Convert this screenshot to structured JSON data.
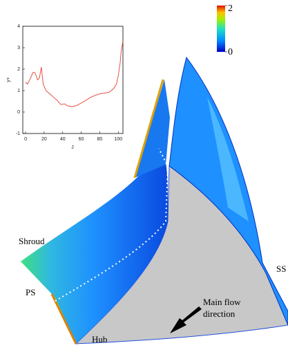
{
  "chart_data": {
    "type": "line",
    "x_label": "J",
    "y_label": "y+",
    "x": [
      0,
      2,
      5,
      8,
      10,
      13,
      15,
      17,
      19,
      22,
      26,
      30,
      34,
      38,
      42,
      45,
      50,
      55,
      60,
      65,
      70,
      75,
      80,
      85,
      90,
      95,
      98,
      100,
      102,
      103,
      105
    ],
    "series": [
      {
        "color": "#e04030",
        "values": [
          1.4,
          1.3,
          1.55,
          1.85,
          1.85,
          1.5,
          1.6,
          2.1,
          1.3,
          1.0,
          0.85,
          0.7,
          0.55,
          0.35,
          0.38,
          0.3,
          0.25,
          0.3,
          0.42,
          0.55,
          0.68,
          0.78,
          0.85,
          0.88,
          0.92,
          1.1,
          1.3,
          1.7,
          2.3,
          2.8,
          3.3
        ]
      }
    ],
    "xlim": [
      -3,
      105
    ],
    "ylim": [
      -1,
      4
    ],
    "xticks": [
      0,
      20,
      40,
      60,
      80,
      100
    ],
    "yticks": [
      -1,
      0,
      1,
      2,
      3,
      4
    ],
    "colorbar": {
      "lim": [
        0,
        2
      ],
      "ticks": [
        0,
        2
      ]
    },
    "annotations": [
      "Shroud",
      "PS",
      "SS",
      "Hub",
      "Main flow",
      "direction"
    ]
  }
}
